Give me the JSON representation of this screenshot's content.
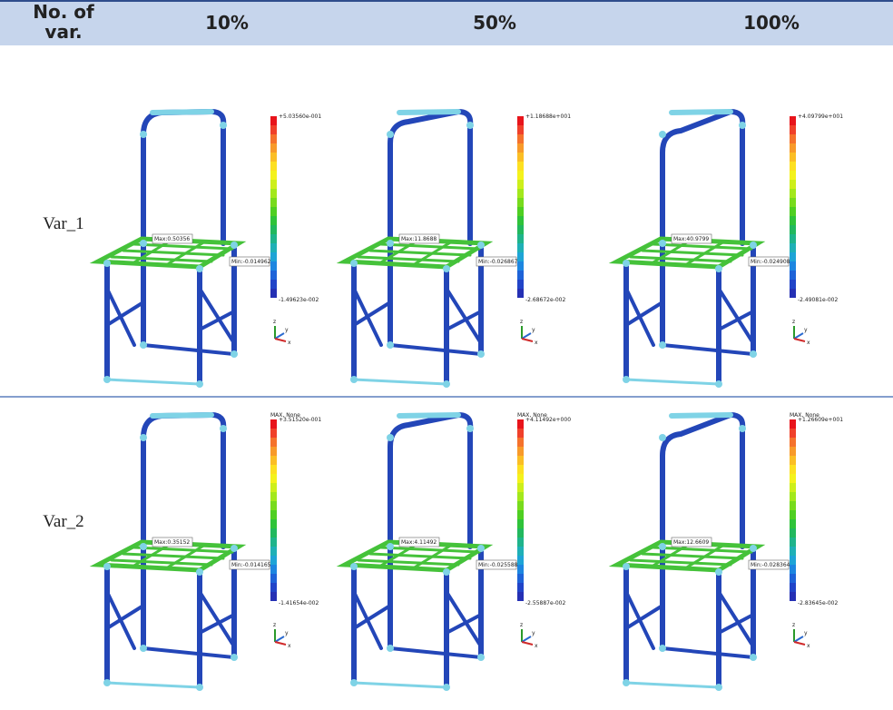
{
  "header": {
    "columns": [
      "No. of var.",
      "10%",
      "50%",
      "100%"
    ]
  },
  "rows": [
    {
      "label": "Var_1",
      "cells": [
        {
          "legend_top": "+5.03560e-001",
          "legend_bottom": "-1.49623e-002",
          "max_label": "Max:0.50356",
          "min_label": "Min:-0.0149623"
        },
        {
          "legend_top": "+1.18688e+001",
          "legend_bottom": "-2.68672e-002",
          "max_label": "Max:11.8688",
          "min_label": "Min:-0.0268672"
        },
        {
          "legend_top": "+4.09799e+001",
          "legend_bottom": "-2.49081e-002",
          "max_label": "Max:40.9799",
          "min_label": "Min:-0.0249081"
        }
      ]
    },
    {
      "label": "Var_2",
      "cells": [
        {
          "legend_title": "MAX, None",
          "legend_top": "+3.51520e-001",
          "legend_bottom": "-1.41654e-002",
          "max_label": "Max:0.35152",
          "min_label": "Min:-0.0141654"
        },
        {
          "legend_title": "MAX, None",
          "legend_top": "+4.11492e+000",
          "legend_bottom": "-2.55887e-002",
          "max_label": "Max:4.11492",
          "min_label": "Min:-0.0255887"
        },
        {
          "legend_title": "MAX, None",
          "legend_top": "+1.26609e+001",
          "legend_bottom": "-2.83645e-002",
          "max_label": "Max:12.6609",
          "min_label": "Min:-0.0283645"
        }
      ]
    }
  ],
  "axis_labels": [
    "z",
    "y",
    "x"
  ]
}
